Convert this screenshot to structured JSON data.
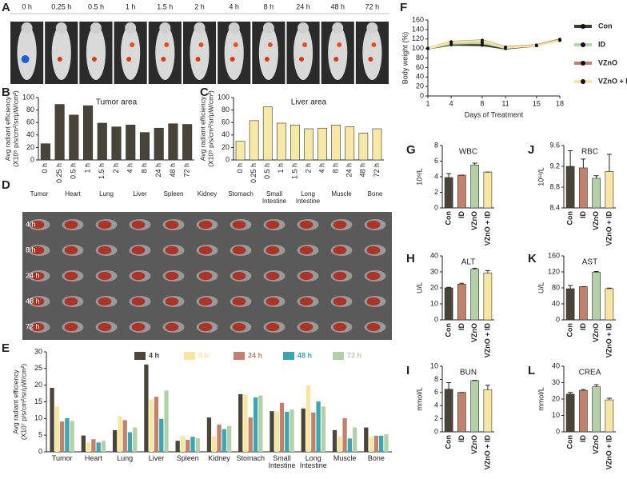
{
  "images": [
    {
      "label": "A",
      "columns": [
        "0 h",
        "0.25 h",
        "0.5 h",
        "1 h",
        "1.5 h",
        "2 h",
        "4 h",
        "8 h",
        "24 h",
        "48 h",
        "72 h"
      ]
    },
    {
      "label": "D",
      "columns": [
        "Tumor",
        "Heart",
        "Lung",
        "Liver",
        "Spleen",
        "Kidney",
        "Stomach",
        "Small Intestine",
        "Long Intestine",
        "Muscle",
        "Bone"
      ],
      "rows": [
        "4 h",
        "8 h",
        "24 h",
        "48 h",
        "72 h"
      ]
    }
  ],
  "chart_data": [
    {
      "label": "B",
      "type": "bar",
      "title": "Tumor area",
      "ylabel": [
        "Avg radiant efficiency",
        "(X10⁵ p/s/cm²/sr/μW/cm²)"
      ],
      "categories": [
        "0 h",
        "0.25 h",
        "0.5 h",
        "1 h",
        "1.5 h",
        "2 h",
        "4 h",
        "8 h",
        "24 h",
        "48 h",
        "72 h"
      ],
      "values": [
        26,
        89,
        72,
        87,
        59,
        53,
        56,
        44,
        51,
        58,
        57
      ],
      "color": "#48443a",
      "ylim": [
        0,
        100
      ],
      "yticks": [
        0,
        20,
        40,
        60,
        80,
        100
      ]
    },
    {
      "label": "C",
      "type": "bar",
      "title": "Liver area",
      "ylabel": [
        "Avg radiant efficiency",
        "(X10⁵ p/s/cm²/sr/μW/cm²)"
      ],
      "categories": [
        "0 h",
        "0.25 h",
        "0.5 h",
        "1 h",
        "1.5 h",
        "2 h",
        "4 h",
        "8 h",
        "24 h",
        "48 h",
        "72 h"
      ],
      "values": [
        30,
        63,
        85,
        59,
        56,
        50,
        51,
        56,
        53,
        43,
        50
      ],
      "color": "#f6e8a5",
      "ylim": [
        0,
        100
      ],
      "yticks": [
        0,
        20,
        40,
        60,
        80,
        100
      ]
    },
    {
      "label": "E",
      "type": "bar",
      "ylabel": [
        "Avg radiant efficiency",
        "(X10⁷ p/s/cm²/sr/μW/cm²)"
      ],
      "categories": [
        "Tumor",
        "Heart",
        "Lung",
        "Liver",
        "Spleen",
        "Kidney",
        "Stomach",
        "Small Intestine",
        "Long Intestine",
        "Muscle",
        "Bone"
      ],
      "series": [
        {
          "name": "4 h",
          "color": "#4a4538",
          "values": [
            19.2,
            4.9,
            6.5,
            26.2,
            3.3,
            10.3,
            17.3,
            12.2,
            13.0,
            6.5,
            7.3
          ]
        },
        {
          "name": "8 h",
          "color": "#f6e6a0",
          "values": [
            13.6,
            2.8,
            10.7,
            15.7,
            4.7,
            4.7,
            17.2,
            12.1,
            19.9,
            4.6,
            4.5
          ]
        },
        {
          "name": "24 h",
          "color": "#c0826c",
          "values": [
            9.1,
            3.8,
            9.5,
            16.5,
            3.6,
            8.2,
            10.3,
            14.7,
            11.8,
            10.1,
            4.8
          ]
        },
        {
          "name": "48 h",
          "color": "#3aa6b0",
          "values": [
            10.1,
            2.8,
            5.9,
            9.9,
            4.5,
            6.8,
            16.3,
            12.0,
            15.1,
            4.0,
            4.8
          ]
        },
        {
          "name": "72 h",
          "color": "#b5d0a8",
          "values": [
            9.3,
            3.3,
            7.3,
            18.4,
            4.1,
            7.8,
            16.9,
            12.7,
            13.6,
            7.3,
            5.3
          ]
        }
      ],
      "ylim": [
        0,
        30
      ],
      "yticks": [
        0,
        5,
        10,
        15,
        20,
        25,
        30
      ]
    },
    {
      "label": "F",
      "type": "line",
      "ylabel": "Body weight (%)",
      "xlabel": "Days of Treatment",
      "x": [
        1,
        4,
        8,
        11,
        15,
        18
      ],
      "xlim": [
        1,
        18
      ],
      "xticks": [
        1,
        4,
        8,
        11,
        15,
        18
      ],
      "ylim": [
        0,
        160
      ],
      "yticks": [
        0,
        20,
        40,
        60,
        80,
        100,
        120,
        140,
        160
      ],
      "legend": "right",
      "series": [
        {
          "name": "Con",
          "color": "#3d3d2c",
          "values": [
            100,
            108,
            107,
            100,
            106,
            118
          ]
        },
        {
          "name": "ID",
          "color": "#b8d4a8",
          "values": [
            100,
            110,
            112,
            101,
            107,
            119
          ]
        },
        {
          "name": "VZnO",
          "color": "#c0826c",
          "values": [
            100,
            114,
            117,
            103,
            107,
            119
          ]
        },
        {
          "name": "VZnO + ID",
          "color": "#f6e6a0",
          "values": [
            100,
            113,
            116,
            102,
            106,
            117
          ]
        }
      ]
    },
    {
      "label": "G",
      "type": "bar",
      "title": "WBC",
      "ylabel": "10⁹/L",
      "categories": [
        "Con",
        "ID",
        "VZnO",
        "VZnO + ID"
      ],
      "values": [
        3.9,
        4.2,
        5.5,
        4.6
      ],
      "errors": [
        0.5,
        0,
        0.25,
        0
      ],
      "colors": [
        "#48443a",
        "#c0826c",
        "#b5d0a8",
        "#f6e6a0"
      ],
      "ylim": [
        0,
        8
      ],
      "yticks": [
        0,
        2,
        4,
        6,
        8
      ]
    },
    {
      "label": "J",
      "type": "bar",
      "title": "RBC",
      "ylabel": "10¹²/L",
      "categories": [
        "Con",
        "ID",
        "VZnO",
        "VZnO + ID"
      ],
      "values": [
        9.2,
        9.17,
        8.97,
        9.1
      ],
      "errors": [
        0.3,
        0.17,
        0.05,
        0.33
      ],
      "colors": [
        "#48443a",
        "#c0826c",
        "#b5d0a8",
        "#f6e6a0"
      ],
      "ylim": [
        8.4,
        9.6
      ],
      "yticks": [
        8.4,
        8.8,
        9.2,
        9.6
      ]
    },
    {
      "label": "H",
      "type": "bar",
      "title": "ALT",
      "ylabel": "U/L",
      "categories": [
        "Con",
        "ID",
        "VZnO",
        "VZnO + ID"
      ],
      "values": [
        20,
        22.3,
        31.7,
        29.3
      ],
      "errors": [
        0.4,
        0.6,
        0.6,
        1.5
      ],
      "colors": [
        "#48443a",
        "#c0826c",
        "#b5d0a8",
        "#f6e6a0"
      ],
      "ylim": [
        0,
        40
      ],
      "yticks": [
        0,
        10,
        20,
        30,
        40
      ]
    },
    {
      "label": "K",
      "type": "bar",
      "title": "AST",
      "ylabel": "U/L",
      "categories": [
        "Con",
        "ID",
        "VZnO",
        "VZnO + ID"
      ],
      "values": [
        78,
        83,
        119,
        78
      ],
      "errors": [
        8,
        0,
        2,
        1.5
      ],
      "colors": [
        "#48443a",
        "#c0826c",
        "#b5d0a8",
        "#f6e6a0"
      ],
      "ylim": [
        0,
        160
      ],
      "yticks": [
        0,
        40,
        80,
        120,
        160
      ]
    },
    {
      "label": "I",
      "type": "bar",
      "title": "BUN",
      "ylabel": "mmol/L",
      "categories": [
        "Con",
        "ID",
        "VZnO",
        "VZnO + ID"
      ],
      "values": [
        6.5,
        6.0,
        7.8,
        6.4
      ],
      "errors": [
        1.0,
        0,
        0.05,
        0.7
      ],
      "colors": [
        "#48443a",
        "#c0826c",
        "#b5d0a8",
        "#f6e6a0"
      ],
      "ylim": [
        0,
        10
      ],
      "yticks": [
        0,
        2,
        4,
        6,
        8,
        10
      ]
    },
    {
      "label": "L",
      "type": "bar",
      "title": "CREA",
      "ylabel": "mmol/L",
      "categories": [
        "Con",
        "ID",
        "VZnO",
        "VZnO + ID"
      ],
      "values": [
        23,
        25.3,
        27.5,
        19.5
      ],
      "errors": [
        1,
        0.5,
        1.2,
        1
      ],
      "colors": [
        "#48443a",
        "#c0826c",
        "#b5d0a8",
        "#f6e6a0"
      ],
      "ylim": [
        0,
        40
      ],
      "yticks": [
        0,
        10,
        20,
        30,
        40
      ]
    }
  ]
}
